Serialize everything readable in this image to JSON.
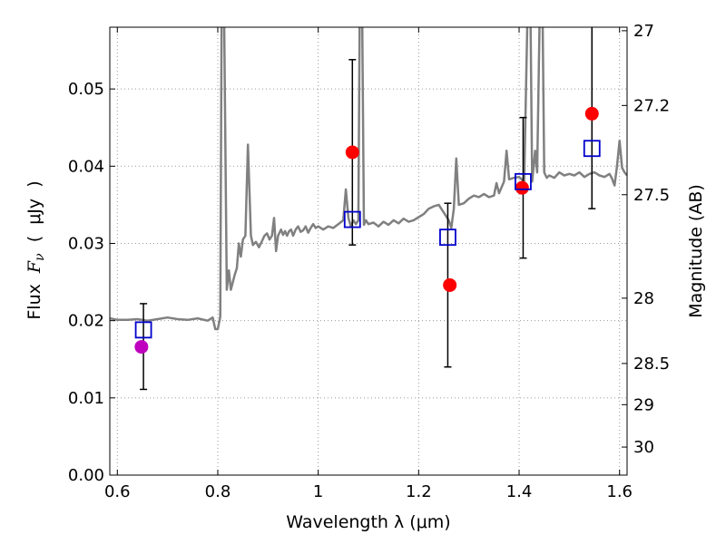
{
  "chart_data": {
    "type": "scatter",
    "title": "",
    "xlabel": "Wavelength  λ (μm)",
    "ylabel_parts": {
      "pre": "Flux  ",
      "sym": "F",
      "sub": "ν",
      "post": "  (  μJy  )"
    },
    "y2label": "Magnitude (AB)",
    "xlim": [
      0.585,
      1.615
    ],
    "ylim": [
      0.0,
      0.058
    ],
    "grid": true,
    "grid_style": "dotted",
    "xticks": [
      0.6,
      0.8,
      1.0,
      1.2,
      1.4,
      1.6
    ],
    "xtick_labels": [
      "0.6",
      "0.8",
      "1",
      "1.2",
      "1.4",
      "1.6"
    ],
    "yticks": [
      0.0,
      0.01,
      0.02,
      0.03,
      0.04,
      0.05
    ],
    "ytick_labels": [
      "0.00",
      "0.01",
      "0.02",
      "0.03",
      "0.04",
      "0.05"
    ],
    "y2ticks": [
      {
        "mag": 27,
        "label": "27"
      },
      {
        "mag": 27.2,
        "label": "27.2"
      },
      {
        "mag": 27.5,
        "label": "27.5"
      },
      {
        "mag": 28,
        "label": "28"
      },
      {
        "mag": 28.5,
        "label": "28.5"
      },
      {
        "mag": 29,
        "label": "29"
      },
      {
        "mag": 30,
        "label": "30"
      }
    ],
    "model_spectrum": {
      "color": "#808080",
      "points": [
        [
          0.585,
          0.0203
        ],
        [
          0.6,
          0.0201
        ],
        [
          0.62,
          0.0201
        ],
        [
          0.64,
          0.0202
        ],
        [
          0.66,
          0.02
        ],
        [
          0.68,
          0.0202
        ],
        [
          0.7,
          0.0204
        ],
        [
          0.72,
          0.0202
        ],
        [
          0.74,
          0.0201
        ],
        [
          0.76,
          0.0203
        ],
        [
          0.78,
          0.02
        ],
        [
          0.79,
          0.0204
        ],
        [
          0.795,
          0.0189
        ],
        [
          0.8,
          0.0189
        ],
        [
          0.805,
          0.0205
        ],
        [
          0.808,
          0.064
        ],
        [
          0.812,
          0.064
        ],
        [
          0.818,
          0.024
        ],
        [
          0.822,
          0.0265
        ],
        [
          0.826,
          0.024
        ],
        [
          0.83,
          0.025
        ],
        [
          0.834,
          0.026
        ],
        [
          0.838,
          0.0268
        ],
        [
          0.842,
          0.03
        ],
        [
          0.846,
          0.0283
        ],
        [
          0.85,
          0.0305
        ],
        [
          0.855,
          0.031
        ],
        [
          0.86,
          0.0428
        ],
        [
          0.866,
          0.031
        ],
        [
          0.87,
          0.0298
        ],
        [
          0.876,
          0.0302
        ],
        [
          0.882,
          0.0295
        ],
        [
          0.888,
          0.0303
        ],
        [
          0.893,
          0.031
        ],
        [
          0.898,
          0.0313
        ],
        [
          0.903,
          0.0305
        ],
        [
          0.908,
          0.031
        ],
        [
          0.912,
          0.0333
        ],
        [
          0.916,
          0.029
        ],
        [
          0.92,
          0.031
        ],
        [
          0.926,
          0.0318
        ],
        [
          0.93,
          0.0311
        ],
        [
          0.934,
          0.0316
        ],
        [
          0.938,
          0.031
        ],
        [
          0.942,
          0.0316
        ],
        [
          0.946,
          0.0318
        ],
        [
          0.95,
          0.031
        ],
        [
          0.955,
          0.0318
        ],
        [
          0.96,
          0.0322
        ],
        [
          0.965,
          0.0315
        ],
        [
          0.97,
          0.0317
        ],
        [
          0.975,
          0.0322
        ],
        [
          0.98,
          0.0314
        ],
        [
          0.985,
          0.032
        ],
        [
          0.99,
          0.0325
        ],
        [
          0.995,
          0.032
        ],
        [
          1.0,
          0.0322
        ],
        [
          1.01,
          0.0318
        ],
        [
          1.02,
          0.0322
        ],
        [
          1.03,
          0.032
        ],
        [
          1.04,
          0.0325
        ],
        [
          1.05,
          0.033
        ],
        [
          1.055,
          0.037
        ],
        [
          1.06,
          0.0333
        ],
        [
          1.065,
          0.0322
        ],
        [
          1.07,
          0.033
        ],
        [
          1.075,
          0.0325
        ],
        [
          1.08,
          0.033
        ],
        [
          1.083,
          0.064
        ],
        [
          1.087,
          0.064
        ],
        [
          1.091,
          0.0324
        ],
        [
          1.095,
          0.033
        ],
        [
          1.1,
          0.0325
        ],
        [
          1.11,
          0.0327
        ],
        [
          1.12,
          0.0322
        ],
        [
          1.13,
          0.0328
        ],
        [
          1.14,
          0.0324
        ],
        [
          1.15,
          0.033
        ],
        [
          1.16,
          0.0326
        ],
        [
          1.17,
          0.0332
        ],
        [
          1.18,
          0.0328
        ],
        [
          1.19,
          0.033
        ],
        [
          1.2,
          0.0334
        ],
        [
          1.21,
          0.0338
        ],
        [
          1.22,
          0.0345
        ],
        [
          1.23,
          0.0348
        ],
        [
          1.24,
          0.035
        ],
        [
          1.25,
          0.034
        ],
        [
          1.26,
          0.033
        ],
        [
          1.265,
          0.032
        ],
        [
          1.27,
          0.0345
        ],
        [
          1.275,
          0.041
        ],
        [
          1.28,
          0.035
        ],
        [
          1.29,
          0.0352
        ],
        [
          1.3,
          0.0358
        ],
        [
          1.31,
          0.0362
        ],
        [
          1.32,
          0.036
        ],
        [
          1.33,
          0.0364
        ],
        [
          1.34,
          0.036
        ],
        [
          1.35,
          0.0362
        ],
        [
          1.355,
          0.0378
        ],
        [
          1.36,
          0.0365
        ],
        [
          1.37,
          0.038
        ],
        [
          1.375,
          0.042
        ],
        [
          1.38,
          0.0383
        ],
        [
          1.39,
          0.0385
        ],
        [
          1.4,
          0.0386
        ],
        [
          1.41,
          0.038
        ],
        [
          1.418,
          0.064
        ],
        [
          1.422,
          0.064
        ],
        [
          1.426,
          0.038
        ],
        [
          1.432,
          0.042
        ],
        [
          1.436,
          0.0392
        ],
        [
          1.442,
          0.064
        ],
        [
          1.446,
          0.064
        ],
        [
          1.45,
          0.0392
        ],
        [
          1.455,
          0.0385
        ],
        [
          1.46,
          0.0388
        ],
        [
          1.47,
          0.0385
        ],
        [
          1.48,
          0.0392
        ],
        [
          1.49,
          0.0388
        ],
        [
          1.5,
          0.039
        ],
        [
          1.51,
          0.0388
        ],
        [
          1.52,
          0.0392
        ],
        [
          1.53,
          0.0386
        ],
        [
          1.54,
          0.039
        ],
        [
          1.55,
          0.0392
        ],
        [
          1.56,
          0.0388
        ],
        [
          1.57,
          0.0386
        ],
        [
          1.58,
          0.039
        ],
        [
          1.585,
          0.0384
        ],
        [
          1.59,
          0.0375
        ],
        [
          1.595,
          0.04
        ],
        [
          1.6,
          0.0433
        ],
        [
          1.605,
          0.0398
        ],
        [
          1.61,
          0.0392
        ],
        [
          1.615,
          0.0388
        ]
      ]
    },
    "observed_points": [
      {
        "x": 0.648,
        "y": 0.0166,
        "color": "#bf00bf"
      },
      {
        "x": 1.068,
        "y": 0.0418,
        "color": "#ff0000"
      },
      {
        "x": 1.262,
        "y": 0.0246,
        "color": "#ff0000"
      },
      {
        "x": 1.406,
        "y": 0.0372,
        "color": "#ff0000"
      },
      {
        "x": 1.545,
        "y": 0.0468,
        "color": "#ff0000"
      }
    ],
    "model_photometry": [
      {
        "x": 0.652,
        "y": 0.0188,
        "yerr_low": 0.0111,
        "yerr_high": 0.0222
      },
      {
        "x": 1.068,
        "y": 0.0331,
        "yerr_low": 0.0298,
        "yerr_high": 0.0538
      },
      {
        "x": 1.258,
        "y": 0.0308,
        "yerr_low": 0.014,
        "yerr_high": 0.0352
      },
      {
        "x": 1.408,
        "y": 0.038,
        "yerr_low": 0.0281,
        "yerr_high": 0.0463
      },
      {
        "x": 1.545,
        "y": 0.0423,
        "yerr_low": 0.0345,
        "yerr_high": 0.058
      }
    ],
    "colors": {
      "square": "#0000cc",
      "errorbar": "#000000",
      "grid": "#999999"
    }
  }
}
